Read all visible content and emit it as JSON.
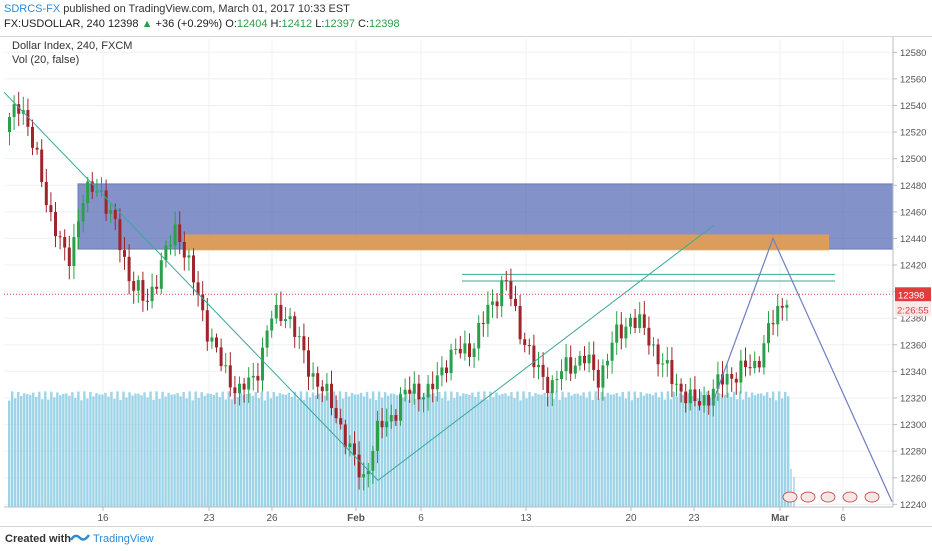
{
  "header": {
    "author": "SDRCS-FX",
    "published": "published on TradingView.com, March 01, 2017 10:33 EST",
    "symbol_quote": "FX:USDOLLAR, 240",
    "last": "12398",
    "change_arrow": "▲",
    "change": "+36 (+0.29%)",
    "o_label": "O:",
    "o_value": "12404",
    "h_label": "H:",
    "h_value": "12412",
    "l_label": "L:",
    "l_value": "12397",
    "c_label": "C:",
    "c_value": "12398"
  },
  "legend": {
    "line1": "Dollar Index, 240, FXCM",
    "line2": "Vol (20, false)"
  },
  "footer": {
    "created_with": "Created with",
    "brand": "TradingView"
  },
  "colors": {
    "up": "#2ba04a",
    "down": "#a0242b",
    "supply_zone": "#5a6fb8",
    "orange_band": "#f0a040",
    "trendline": "#3aa89a",
    "projection": "#6f7fc0",
    "volume": "#8dcde3",
    "price_tag": "#e23d3d"
  },
  "chart_data": {
    "type": "candlestick",
    "title": "Dollar Index, 240, FXCM",
    "y_axis": {
      "ticks": [
        12240,
        12260,
        12280,
        12300,
        12320,
        12340,
        12360,
        12380,
        12400,
        12420,
        12440,
        12460,
        12480,
        12500,
        12520,
        12540,
        12560,
        12580
      ],
      "range": [
        12238,
        12590
      ]
    },
    "x_axis": {
      "ticks": [
        "16",
        "23",
        "26",
        "Feb",
        "6",
        "13",
        "20",
        "23",
        "Mar",
        "6"
      ]
    },
    "last_price": "12398",
    "countdown": "2:26:55",
    "price_path": [
      12520,
      12545,
      12500,
      12455,
      12420,
      12470,
      12480,
      12450,
      12410,
      12390,
      12420,
      12450,
      12410,
      12370,
      12340,
      12325,
      12335,
      12380,
      12385,
      12355,
      12330,
      12315,
      12280,
      12260,
      12300,
      12310,
      12330,
      12320,
      12345,
      12355,
      12360,
      12390,
      12408,
      12370,
      12340,
      12330,
      12345,
      12350,
      12335,
      12365,
      12380,
      12370,
      12345,
      12330,
      12315,
      12322,
      12335,
      12340,
      12345,
      12375,
      12398
    ],
    "annotations": {
      "supply_zone": [
        12432,
        12481
      ],
      "orange_band": [
        12431,
        12443
      ],
      "horizontal_lines": [
        12408,
        12413
      ],
      "descending_trendline": [
        [
          12550,
          "Jan 10"
        ],
        [
          12258,
          "Feb 2"
        ]
      ],
      "ascending_trendline": [
        [
          12258,
          "Feb 2"
        ],
        [
          12450,
          "Mar 3"
        ]
      ],
      "projection": [
        [
          12315,
          "Feb 24"
        ],
        [
          12440,
          "Mar 1"
        ],
        [
          12242,
          "Mar 8"
        ]
      ]
    },
    "volume": {
      "indicator": "Vol (20, false)"
    },
    "grid": true
  }
}
